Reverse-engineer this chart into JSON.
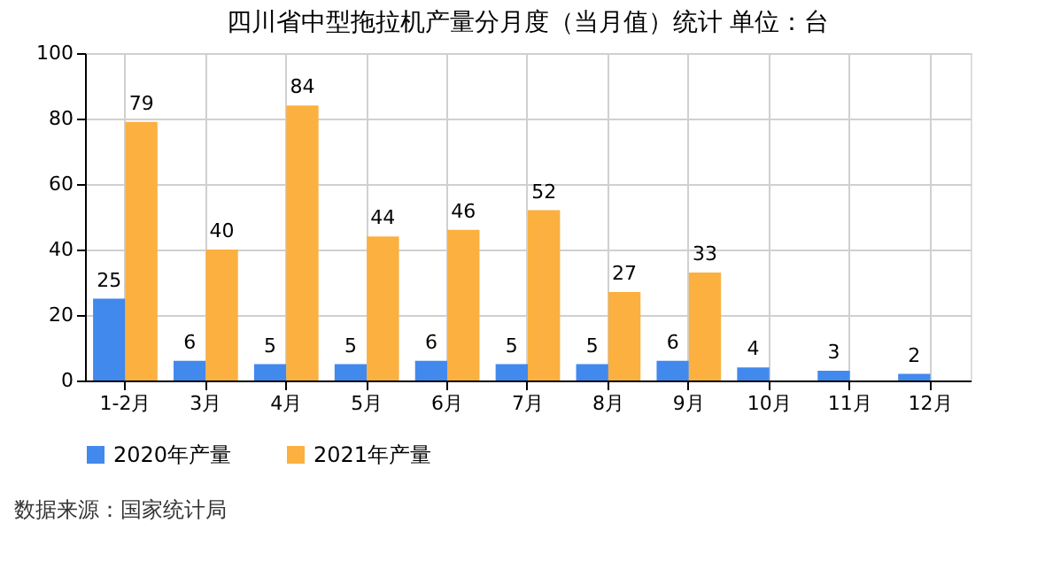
{
  "chart_data": {
    "type": "bar",
    "title": "四川省中型拖拉机产量分月度（当月值）统计  单位：台",
    "categories": [
      "1-2月",
      "3月",
      "4月",
      "5月",
      "6月",
      "7月",
      "8月",
      "9月",
      "10月",
      "11月",
      "12月"
    ],
    "series": [
      {
        "name": "2020年产量",
        "color": "#4189ec",
        "values": [
          25,
          6,
          5,
          5,
          6,
          5,
          5,
          6,
          4,
          3,
          2
        ]
      },
      {
        "name": "2021年产量",
        "color": "#fbb040",
        "values": [
          79,
          40,
          84,
          44,
          46,
          52,
          27,
          33,
          null,
          null,
          null
        ]
      }
    ],
    "ylim": [
      0,
      100
    ],
    "yticks": [
      0,
      20,
      40,
      60,
      80,
      100
    ],
    "grid": true,
    "legend": "bottom",
    "data_labels": true,
    "annotations": [
      "数据来源：国家统计局"
    ]
  }
}
